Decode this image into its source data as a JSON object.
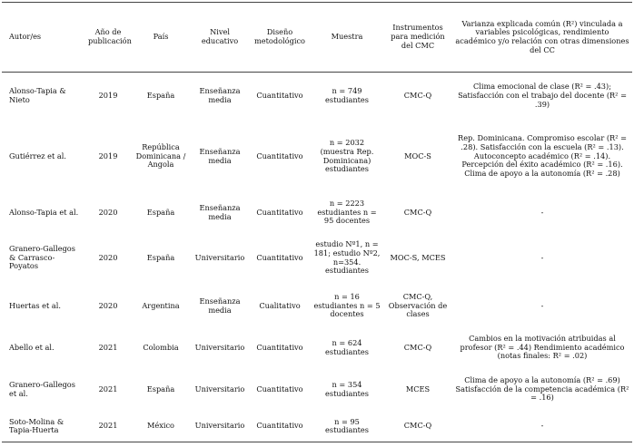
{
  "headers": {
    "author": "Autor/es",
    "year": "Año de publicación",
    "country": "País",
    "level": "Nivel educativo",
    "design": "Diseño metodológico",
    "sample": "Muestra",
    "instruments": "Instrumentos para medición del CMC",
    "variance": "Varianza explicada común (R²) vinculada a variables psicológicas, rendimiento académico y/o relación con otras dimensiones del CC"
  },
  "rows": [
    {
      "author": "Alonso-Tapia & Nieto",
      "year": "2019",
      "country": "España",
      "level": "Enseñanza media",
      "design": "Cuantitativo",
      "sample": "n = 749 estudiantes",
      "instruments": "CMC-Q",
      "variance": "Clima emocional de clase (R² = .43); Satisfacción con el trabajo del docente (R² = .39)"
    },
    {
      "author": "Gutiérrez et al.",
      "year": "2019",
      "country": "República Dominicana / Angola",
      "level": "Enseñanza media",
      "design": "Cuantitativo",
      "sample": "n = 2032 (muestra Rep. Dominicana) estudiantes",
      "instruments": "MOC-S",
      "variance": "Rep. Dominicana. Compromiso escolar (R² = .28). Satisfacción con la escuela (R² = .13). Autoconcepto académico (R² = .14). Percepción del éxito académico (R² = .16). Clima de apoyo a la autonomía (R² = .28)"
    },
    {
      "author": "Alonso-Tapia et al.",
      "year": "2020",
      "country": "España",
      "level": "Enseñanza media",
      "design": "Cuantitativo",
      "sample": "n = 2223 estudiantes n = 95 docentes",
      "instruments": "CMC-Q",
      "variance": "-"
    },
    {
      "author": "Granero-Gallegos & Carrasco-Poyatos",
      "year": "2020",
      "country": "España",
      "level": "Universitario",
      "design": "Cuantitativo",
      "sample": "estudio Nº1, n = 181; estudio Nº2, n=354. estudiantes",
      "instruments": "MOC-S, MCES",
      "variance": "-"
    },
    {
      "author": "Huertas et al.",
      "year": "2020",
      "country": "Argentina",
      "level": "Enseñanza media",
      "design": "Cualitativo",
      "sample": "n = 16 estudiantes n = 5 docentes",
      "instruments": "CMC-Q, Observación de clases",
      "variance": "-"
    },
    {
      "author": "Abello et al.",
      "year": "2021",
      "country": "Colombia",
      "level": "Universitario",
      "design": "Cuantitativo",
      "sample": "n = 624 estudiantes",
      "instruments": "CMC-Q",
      "variance": "Cambios en la motivación atribuidas al profesor (R² = .44) Rendimiento académico (notas finales: R² = .02)"
    },
    {
      "author": "Granero-Gallegos et al.",
      "year": "2021",
      "country": "España",
      "level": "Universitario",
      "design": "Cuantitativo",
      "sample": "n = 354 estudiantes",
      "instruments": "MCES",
      "variance": "Clima de apoyo a la autonomía (R² = .69) Satisfacción de la competencia académica (R² = .16)"
    },
    {
      "author": "Soto-Molina & Tapia-Huerta",
      "year": "2021",
      "country": "México",
      "level": "Universitario",
      "design": "Cuantitativo",
      "sample": "n = 95 estudiantes",
      "instruments": "CMC-Q",
      "variance": "-"
    }
  ]
}
